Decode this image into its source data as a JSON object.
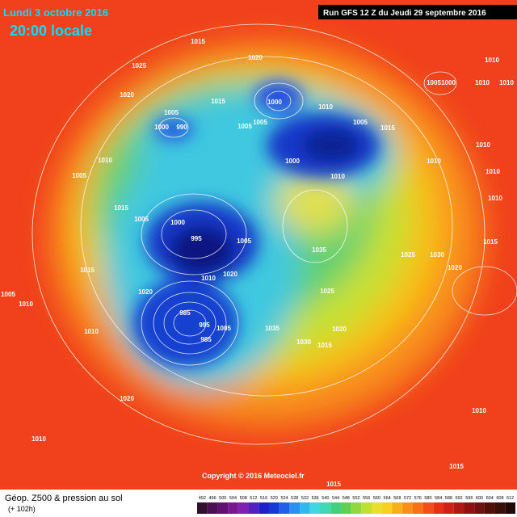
{
  "header": {
    "valid_date": "Lundi 3 octobre 2016",
    "valid_time": "20:00 locale",
    "run": "Run GFS 12 Z du Jeudi 29 septembre 2016"
  },
  "isobar_labels": [
    "1015",
    "1020",
    "1025",
    "1020",
    "1015",
    "1000",
    "1010",
    "1005",
    "1000",
    "990",
    "1005",
    "1005",
    "1005",
    "1015",
    "1010",
    "1000",
    "1010",
    "1010",
    "1005",
    "1015",
    "1005",
    "1000",
    "995",
    "1005",
    "1035",
    "1025",
    "1030",
    "1020",
    "1010",
    "1020",
    "1015",
    "1025",
    "1020",
    "1005",
    "1010",
    "1010",
    "985",
    "995",
    "1005",
    "985",
    "1035",
    "1030",
    "1015",
    "1020",
    "1020",
    "1010",
    "1010",
    "1015",
    "1015",
    "1010",
    "1005",
    "1000",
    "1010",
    "1010",
    "1010",
    "1010",
    "1010",
    "1015"
  ],
  "footer": {
    "copyright": "Copyright © 2016 Meteociel.fr",
    "product": "Géop. Z500 & pression au sol",
    "lead_time": "(+ 102h)"
  },
  "scale": {
    "labels": [
      "492",
      "496",
      "500",
      "504",
      "508",
      "512",
      "516",
      "520",
      "524",
      "528",
      "532",
      "536",
      "540",
      "544",
      "548",
      "552",
      "556",
      "560",
      "564",
      "568",
      "572",
      "576",
      "580",
      "584",
      "588",
      "592",
      "596",
      "600",
      "604",
      "608",
      "612"
    ],
    "colors": [
      "#30102c",
      "#4a1050",
      "#601070",
      "#781890",
      "#8020b0",
      "#5020c0",
      "#2020c8",
      "#1838d8",
      "#2060e8",
      "#2890f0",
      "#30b8f0",
      "#40d8e0",
      "#40d8b0",
      "#40d080",
      "#60d050",
      "#90d840",
      "#c0e030",
      "#e8e028",
      "#f8d020",
      "#f8b018",
      "#f89018",
      "#f87018",
      "#f05018",
      "#e83018",
      "#d02018",
      "#b01818",
      "#901010",
      "#701010",
      "#501008",
      "#381008",
      "#200808"
    ]
  }
}
